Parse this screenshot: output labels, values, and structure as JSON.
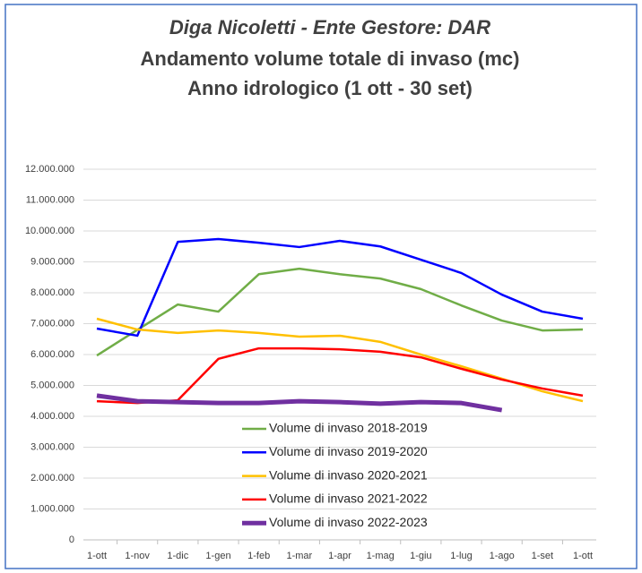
{
  "chart_data": {
    "type": "line",
    "title": [
      "Diga Nicoletti - Ente Gestore: DAR",
      "Andamento volume totale di invaso (mc)",
      "Anno idrologico (1 ott - 30 set)"
    ],
    "categories": [
      "1-ott",
      "1-nov",
      "1-dic",
      "1-gen",
      "1-feb",
      "1-mar",
      "1-apr",
      "1-mag",
      "1-giu",
      "1-lug",
      "1-ago",
      "1-set",
      "1-ott"
    ],
    "series": [
      {
        "name": "Volume di invaso 2018-2019",
        "color": "#70ad47",
        "values": [
          5970000,
          6800000,
          7620000,
          7390000,
          8600000,
          8780000,
          8600000,
          8460000,
          8120000,
          7590000,
          7100000,
          6780000,
          6810000
        ]
      },
      {
        "name": "Volume di invaso 2019-2020",
        "color": "#0000ff",
        "values": [
          6840000,
          6610000,
          9650000,
          9740000,
          9620000,
          9480000,
          9680000,
          9500000,
          9070000,
          8640000,
          7940000,
          7390000,
          7160000
        ]
      },
      {
        "name": "Volume di invaso 2020-2021",
        "color": "#ffc000",
        "values": [
          7160000,
          6810000,
          6700000,
          6780000,
          6700000,
          6580000,
          6610000,
          6410000,
          6000000,
          5620000,
          5220000,
          4810000,
          4490000
        ]
      },
      {
        "name": "Volume di invaso 2021-2022",
        "color": "#ff0000",
        "values": [
          4490000,
          4430000,
          4520000,
          5860000,
          6200000,
          6200000,
          6170000,
          6090000,
          5910000,
          5540000,
          5190000,
          4900000,
          4670000
        ]
      },
      {
        "name": "Volume di invaso 2022-2023",
        "color": "#7030a0",
        "values": [
          4670000,
          4490000,
          4460000,
          4430000,
          4430000,
          4490000,
          4460000,
          4410000,
          4460000,
          4430000,
          4200000,
          null,
          null
        ]
      }
    ],
    "ylim": [
      0,
      12000000
    ],
    "yticks": [
      0,
      {
        "value": 1000000,
        "label": "1.000.000"
      },
      {
        "value": 2000000,
        "label": "2.000.000"
      },
      {
        "value": 3000000,
        "label": "3.000.000"
      },
      {
        "value": 4000000,
        "label": "4.000.000"
      },
      {
        "value": 5000000,
        "label": "5.000.000"
      },
      {
        "value": 6000000,
        "label": "6.000.000"
      },
      {
        "value": 7000000,
        "label": "7.000.000"
      },
      {
        "value": 8000000,
        "label": "8.000.000"
      },
      {
        "value": 9000000,
        "label": "9.000.000"
      },
      {
        "value": 10000000,
        "label": "10.000.000"
      },
      {
        "value": 11000000,
        "label": "11.000.000"
      },
      {
        "value": 12000000,
        "label": "12.000.000"
      }
    ],
    "grid": true
  }
}
